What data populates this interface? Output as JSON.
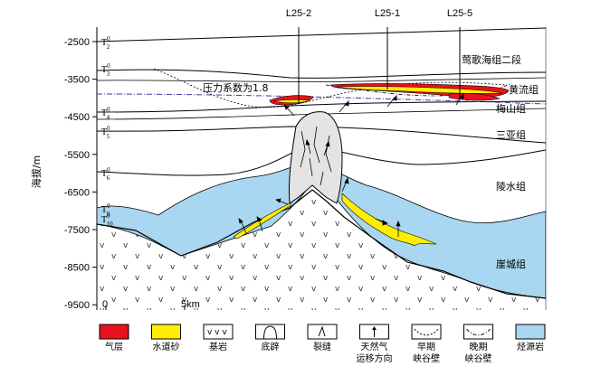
{
  "axis": {
    "label": "海拔/m",
    "ticks": [
      "-2500",
      "-3500",
      "-4500",
      "-5500",
      "-6500",
      "-7500",
      "-8500",
      "-9500"
    ]
  },
  "wells": [
    "L25-2",
    "L25-1",
    "L25-5"
  ],
  "horizons": {
    "t2": "T",
    "t2_sup": "0",
    "t2_sub": "2",
    "t3": "T",
    "t3_sup": "0",
    "t3_sub": "3",
    "t4": "T",
    "t4_sup": "0",
    "t4_sub": "4",
    "t5": "T",
    "t5_sup": "0",
    "t5_sub": "5",
    "t6": "T",
    "t6_sup": "0",
    "t6_sub": "6",
    "t9": "T",
    "t9_sup": "0",
    "t9_sub": "9",
    "t10": "T",
    "t10_sup": "0",
    "t10_sub": "10"
  },
  "formations": [
    "莺歌海组二段",
    "黄流组",
    "梅山组",
    "三亚组",
    "陵水组",
    "崖城组"
  ],
  "annotation": "压力系数为1.8",
  "scale": {
    "zero": "0",
    "end": "5km"
  },
  "legend": [
    {
      "label": "气层",
      "kind": "gas",
      "color": "#e8121e"
    },
    {
      "label": "水道砂",
      "kind": "sand",
      "color": "#ffee00"
    },
    {
      "label": "基岩",
      "kind": "bedrock",
      "color": "#ffffff"
    },
    {
      "label": "底辟",
      "kind": "diapir",
      "color": "#ffffff"
    },
    {
      "label": "裂缝",
      "kind": "fracture",
      "color": "#ffffff"
    },
    {
      "label": "天然气",
      "label2": "运移方向",
      "kind": "migration",
      "color": "#ffffff"
    },
    {
      "label": "早期",
      "label2": "峡谷壁",
      "kind": "early-canyon",
      "color": "#ffffff"
    },
    {
      "label": "晚期",
      "label2": "峡谷壁",
      "kind": "late-canyon",
      "color": "#ffffff"
    },
    {
      "label": "烃源岩",
      "kind": "source-rock",
      "color": "#a9d6f0"
    }
  ],
  "colors": {
    "source_rock": "#a9d6f0",
    "gas": "#e8121e",
    "sand": "#ffee00",
    "diapir": "#e4e4e4",
    "pressure_line": "#3a3aa8"
  }
}
